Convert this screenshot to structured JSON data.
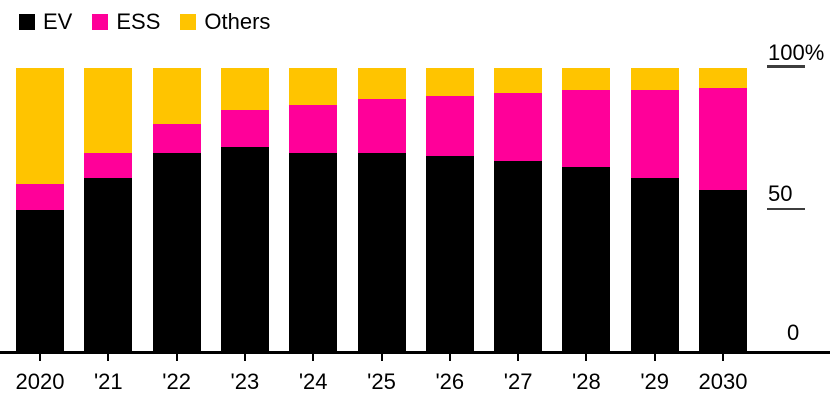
{
  "chart_data": {
    "type": "bar",
    "stacked": true,
    "title": "",
    "xlabel": "",
    "ylabel": "",
    "ylim": [
      0,
      100
    ],
    "grid": false,
    "legend_position": "top-left",
    "categories": [
      "2020",
      "'21",
      "'22",
      "'23",
      "'24",
      "'25",
      "'26",
      "'27",
      "'28",
      "'29",
      "2030"
    ],
    "series": [
      {
        "name": "EV",
        "color": "#000000",
        "values": [
          50,
          61,
          70,
          72,
          70,
          70,
          69,
          67,
          65,
          61,
          57
        ]
      },
      {
        "name": "ESS",
        "color": "#ff0099",
        "values": [
          9,
          9,
          10,
          13,
          17,
          19,
          21,
          24,
          27,
          31,
          36
        ]
      },
      {
        "name": "Others",
        "color": "#ffc400",
        "values": [
          41,
          30,
          20,
          15,
          13,
          11,
          10,
          9,
          8,
          8,
          7
        ]
      }
    ],
    "yticks": [
      {
        "value": 100,
        "label": "100%"
      },
      {
        "value": 50,
        "label": "50"
      },
      {
        "value": 0,
        "label": "0"
      }
    ],
    "unit": "%"
  }
}
